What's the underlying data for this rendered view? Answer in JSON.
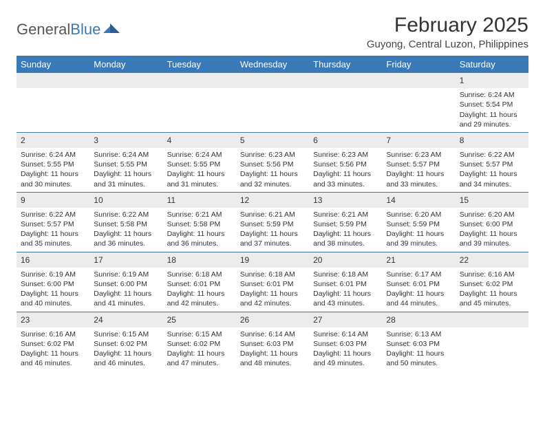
{
  "logo": {
    "first": "General",
    "second": "Blue"
  },
  "title": "February 2025",
  "location": "Guyong, Central Luzon, Philippines",
  "daynames": [
    "Sunday",
    "Monday",
    "Tuesday",
    "Wednesday",
    "Thursday",
    "Friday",
    "Saturday"
  ],
  "colors": {
    "header_bg": "#3a79b7",
    "header_text": "#ffffff",
    "row_number_bg": "#ececec",
    "text": "#333333",
    "rule": "#3a79b7"
  },
  "weeks": [
    [
      {
        "n": "",
        "lines": []
      },
      {
        "n": "",
        "lines": []
      },
      {
        "n": "",
        "lines": []
      },
      {
        "n": "",
        "lines": []
      },
      {
        "n": "",
        "lines": []
      },
      {
        "n": "",
        "lines": []
      },
      {
        "n": "1",
        "lines": [
          "Sunrise: 6:24 AM",
          "Sunset: 5:54 PM",
          "Daylight: 11 hours and 29 minutes."
        ]
      }
    ],
    [
      {
        "n": "2",
        "lines": [
          "Sunrise: 6:24 AM",
          "Sunset: 5:55 PM",
          "Daylight: 11 hours and 30 minutes."
        ]
      },
      {
        "n": "3",
        "lines": [
          "Sunrise: 6:24 AM",
          "Sunset: 5:55 PM",
          "Daylight: 11 hours and 31 minutes."
        ]
      },
      {
        "n": "4",
        "lines": [
          "Sunrise: 6:24 AM",
          "Sunset: 5:55 PM",
          "Daylight: 11 hours and 31 minutes."
        ]
      },
      {
        "n": "5",
        "lines": [
          "Sunrise: 6:23 AM",
          "Sunset: 5:56 PM",
          "Daylight: 11 hours and 32 minutes."
        ]
      },
      {
        "n": "6",
        "lines": [
          "Sunrise: 6:23 AM",
          "Sunset: 5:56 PM",
          "Daylight: 11 hours and 33 minutes."
        ]
      },
      {
        "n": "7",
        "lines": [
          "Sunrise: 6:23 AM",
          "Sunset: 5:57 PM",
          "Daylight: 11 hours and 33 minutes."
        ]
      },
      {
        "n": "8",
        "lines": [
          "Sunrise: 6:22 AM",
          "Sunset: 5:57 PM",
          "Daylight: 11 hours and 34 minutes."
        ]
      }
    ],
    [
      {
        "n": "9",
        "lines": [
          "Sunrise: 6:22 AM",
          "Sunset: 5:57 PM",
          "Daylight: 11 hours and 35 minutes."
        ]
      },
      {
        "n": "10",
        "lines": [
          "Sunrise: 6:22 AM",
          "Sunset: 5:58 PM",
          "Daylight: 11 hours and 36 minutes."
        ]
      },
      {
        "n": "11",
        "lines": [
          "Sunrise: 6:21 AM",
          "Sunset: 5:58 PM",
          "Daylight: 11 hours and 36 minutes."
        ]
      },
      {
        "n": "12",
        "lines": [
          "Sunrise: 6:21 AM",
          "Sunset: 5:59 PM",
          "Daylight: 11 hours and 37 minutes."
        ]
      },
      {
        "n": "13",
        "lines": [
          "Sunrise: 6:21 AM",
          "Sunset: 5:59 PM",
          "Daylight: 11 hours and 38 minutes."
        ]
      },
      {
        "n": "14",
        "lines": [
          "Sunrise: 6:20 AM",
          "Sunset: 5:59 PM",
          "Daylight: 11 hours and 39 minutes."
        ]
      },
      {
        "n": "15",
        "lines": [
          "Sunrise: 6:20 AM",
          "Sunset: 6:00 PM",
          "Daylight: 11 hours and 39 minutes."
        ]
      }
    ],
    [
      {
        "n": "16",
        "lines": [
          "Sunrise: 6:19 AM",
          "Sunset: 6:00 PM",
          "Daylight: 11 hours and 40 minutes."
        ]
      },
      {
        "n": "17",
        "lines": [
          "Sunrise: 6:19 AM",
          "Sunset: 6:00 PM",
          "Daylight: 11 hours and 41 minutes."
        ]
      },
      {
        "n": "18",
        "lines": [
          "Sunrise: 6:18 AM",
          "Sunset: 6:01 PM",
          "Daylight: 11 hours and 42 minutes."
        ]
      },
      {
        "n": "19",
        "lines": [
          "Sunrise: 6:18 AM",
          "Sunset: 6:01 PM",
          "Daylight: 11 hours and 42 minutes."
        ]
      },
      {
        "n": "20",
        "lines": [
          "Sunrise: 6:18 AM",
          "Sunset: 6:01 PM",
          "Daylight: 11 hours and 43 minutes."
        ]
      },
      {
        "n": "21",
        "lines": [
          "Sunrise: 6:17 AM",
          "Sunset: 6:01 PM",
          "Daylight: 11 hours and 44 minutes."
        ]
      },
      {
        "n": "22",
        "lines": [
          "Sunrise: 6:16 AM",
          "Sunset: 6:02 PM",
          "Daylight: 11 hours and 45 minutes."
        ]
      }
    ],
    [
      {
        "n": "23",
        "lines": [
          "Sunrise: 6:16 AM",
          "Sunset: 6:02 PM",
          "Daylight: 11 hours and 46 minutes."
        ]
      },
      {
        "n": "24",
        "lines": [
          "Sunrise: 6:15 AM",
          "Sunset: 6:02 PM",
          "Daylight: 11 hours and 46 minutes."
        ]
      },
      {
        "n": "25",
        "lines": [
          "Sunrise: 6:15 AM",
          "Sunset: 6:02 PM",
          "Daylight: 11 hours and 47 minutes."
        ]
      },
      {
        "n": "26",
        "lines": [
          "Sunrise: 6:14 AM",
          "Sunset: 6:03 PM",
          "Daylight: 11 hours and 48 minutes."
        ]
      },
      {
        "n": "27",
        "lines": [
          "Sunrise: 6:14 AM",
          "Sunset: 6:03 PM",
          "Daylight: 11 hours and 49 minutes."
        ]
      },
      {
        "n": "28",
        "lines": [
          "Sunrise: 6:13 AM",
          "Sunset: 6:03 PM",
          "Daylight: 11 hours and 50 minutes."
        ]
      },
      {
        "n": "",
        "lines": []
      }
    ]
  ]
}
